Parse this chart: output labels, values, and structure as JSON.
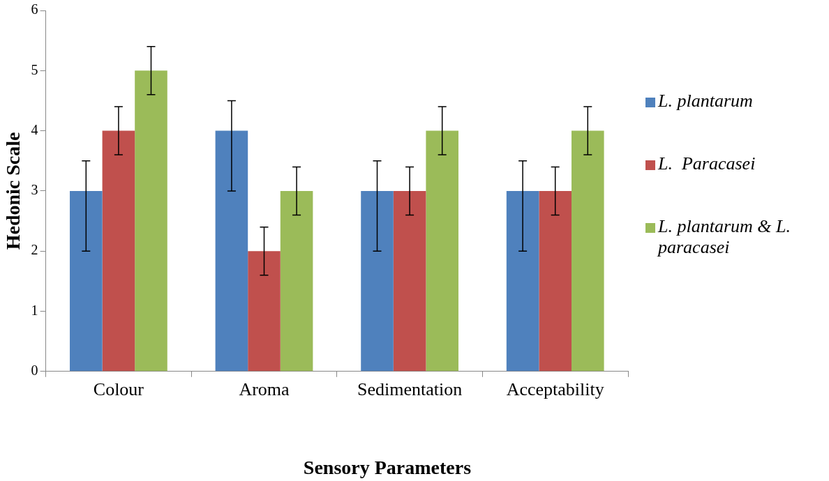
{
  "chart_data": {
    "type": "bar",
    "xlabel": "Sensory Parameters",
    "ylabel": "Hedonic Scale",
    "categories": [
      "Colour",
      "Aroma",
      "Sedimentation",
      "Acceptability"
    ],
    "series": [
      {
        "name": "L. plantarum",
        "color": "#4f81bd",
        "values": [
          3,
          4,
          3,
          3
        ],
        "errors": [
          [
            2,
            3.5
          ],
          [
            3,
            4.5
          ],
          [
            2,
            3.5
          ],
          [
            2,
            3.5
          ]
        ]
      },
      {
        "name": "L.  Paracasei",
        "color": "#c0504d",
        "values": [
          4,
          2,
          3,
          3
        ],
        "errors": [
          [
            3.6,
            4.4
          ],
          [
            1.6,
            2.4
          ],
          [
            2.6,
            3.4
          ],
          [
            2.6,
            3.4
          ]
        ]
      },
      {
        "name": "L. plantarum & L. paracasei",
        "color": "#9bbb59",
        "values": [
          5,
          3,
          4,
          4
        ],
        "errors": [
          [
            4.6,
            5.4
          ],
          [
            2.6,
            3.4
          ],
          [
            3.6,
            4.4
          ],
          [
            3.6,
            4.4
          ]
        ]
      }
    ],
    "ylim": [
      0,
      6
    ],
    "yticks": [
      0,
      1,
      2,
      3,
      4,
      5,
      6
    ],
    "grid": false,
    "legend": "right"
  }
}
